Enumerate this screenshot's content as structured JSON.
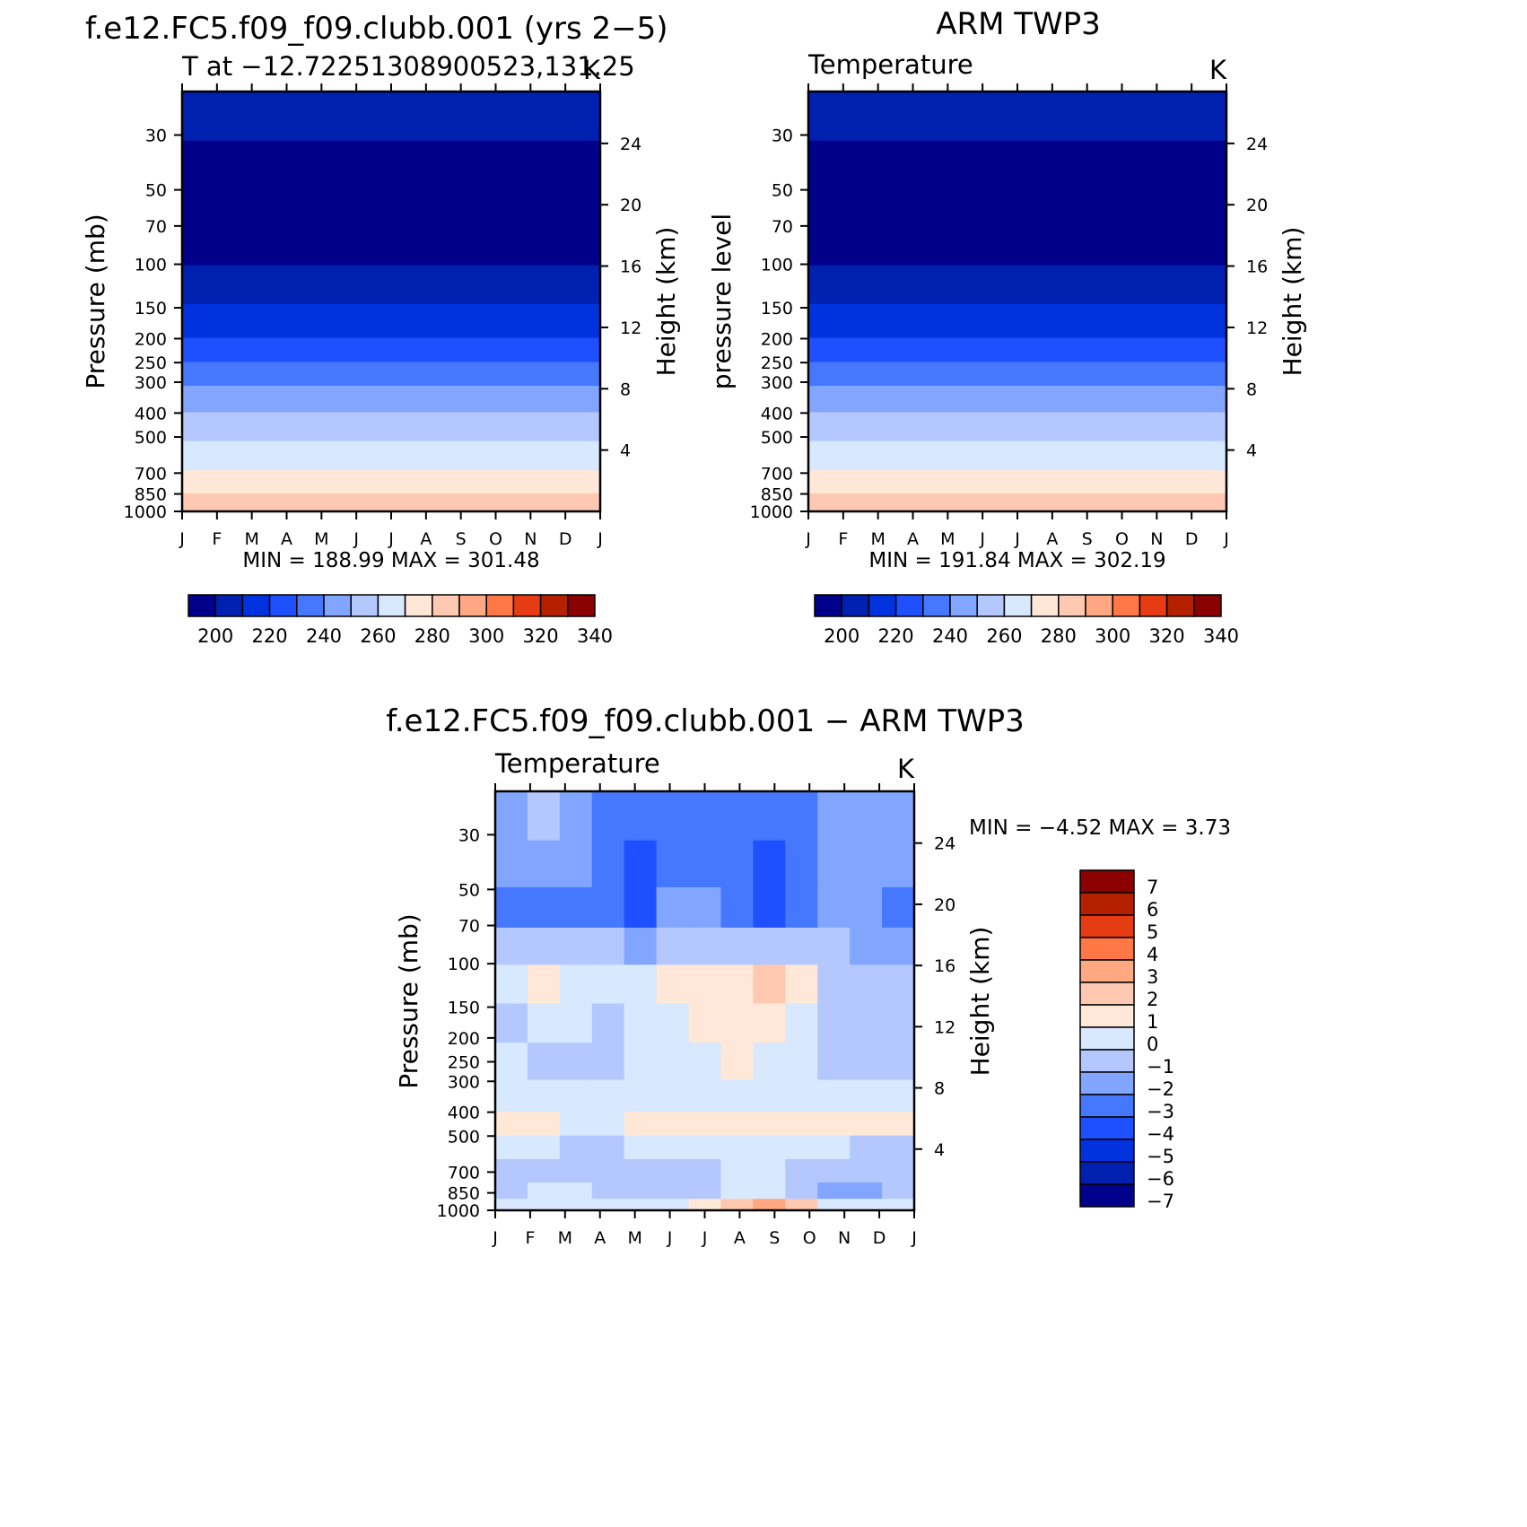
{
  "chart_data": [
    {
      "type": "heatmap",
      "panel": "model",
      "title": "f.e12.FC5.f09_f09.clubb.001 (yrs 2−5)",
      "subtitle_left": "T at −12.72251308900523,131.25",
      "subtitle_right": "K",
      "xlabel": "",
      "ylabel_left": "Pressure (mb)",
      "ylabel_right": "Height (km)",
      "x_ticks": [
        "J",
        "F",
        "M",
        "A",
        "M",
        "J",
        "J",
        "A",
        "S",
        "O",
        "N",
        "D",
        "J"
      ],
      "y_ticks_pressure": [
        30,
        50,
        70,
        100,
        150,
        200,
        250,
        300,
        400,
        500,
        700,
        850,
        1000
      ],
      "y_ticks_height_km": [
        24,
        20,
        16,
        12,
        8,
        4
      ],
      "ylim_pressure_mb": [
        20,
        1000
      ],
      "min_max_text": "MIN = 188.99 MAX = 301.48",
      "min": 188.99,
      "max": 301.48,
      "contour_levels": [
        200,
        210,
        220,
        230,
        240,
        250,
        260,
        270,
        280,
        290,
        300,
        310,
        320,
        330,
        340
      ],
      "colorbar_labels": [
        "200",
        "220",
        "240",
        "260",
        "280",
        "300",
        "320",
        "340"
      ],
      "pressure_levels_mb": [
        25,
        40,
        60,
        85,
        120,
        175,
        225,
        275,
        350,
        450,
        600,
        775,
        925
      ],
      "band_values_K": [
        205,
        195,
        185,
        195,
        205,
        215,
        225,
        235,
        245,
        255,
        265,
        275,
        285
      ]
    },
    {
      "type": "heatmap",
      "panel": "observations",
      "title": "ARM TWP3",
      "subtitle_left": "Temperature",
      "subtitle_right": "K",
      "xlabel": "",
      "ylabel_left": "pressure level",
      "ylabel_right": "Height (km)",
      "x_ticks": [
        "J",
        "F",
        "M",
        "A",
        "M",
        "J",
        "J",
        "A",
        "S",
        "O",
        "N",
        "D",
        "J"
      ],
      "y_ticks_pressure": [
        30,
        50,
        70,
        100,
        150,
        200,
        250,
        300,
        400,
        500,
        700,
        850,
        1000
      ],
      "y_ticks_height_km": [
        24,
        20,
        16,
        12,
        8,
        4
      ],
      "ylim_pressure_mb": [
        20,
        1000
      ],
      "min_max_text": "MIN = 191.84 MAX = 302.19",
      "min": 191.84,
      "max": 302.19,
      "contour_levels": [
        200,
        210,
        220,
        230,
        240,
        250,
        260,
        270,
        280,
        290,
        300,
        310,
        320,
        330,
        340
      ],
      "colorbar_labels": [
        "200",
        "220",
        "240",
        "260",
        "280",
        "300",
        "320",
        "340"
      ],
      "pressure_levels_mb": [
        25,
        40,
        60,
        85,
        120,
        175,
        225,
        275,
        350,
        450,
        600,
        775,
        925
      ],
      "band_values_K": [
        205,
        195,
        185,
        195,
        205,
        215,
        225,
        235,
        245,
        255,
        265,
        275,
        285
      ]
    },
    {
      "type": "heatmap",
      "panel": "difference",
      "title": "f.e12.FC5.f09_f09.clubb.001 − ARM TWP3",
      "subtitle_left": "Temperature",
      "subtitle_right": "K",
      "xlabel": "",
      "ylabel_left": "Pressure (mb)",
      "ylabel_right": "Height (km)",
      "x_ticks": [
        "J",
        "F",
        "M",
        "A",
        "M",
        "J",
        "J",
        "A",
        "S",
        "O",
        "N",
        "D",
        "J"
      ],
      "y_ticks_pressure": [
        30,
        50,
        70,
        100,
        150,
        200,
        250,
        300,
        400,
        500,
        700,
        850,
        1000
      ],
      "y_ticks_height_km": [
        24,
        20,
        16,
        12,
        8,
        4
      ],
      "ylim_pressure_mb": [
        20,
        1000
      ],
      "min_max_text": "MIN = −4.52 MAX = 3.73",
      "min": -4.52,
      "max": 3.73,
      "contour_levels": [
        -7,
        -6,
        -5,
        -4,
        -3,
        -2,
        -1,
        0,
        1,
        2,
        3,
        4,
        5,
        6,
        7
      ],
      "colorbar_labels": [
        "7",
        "6",
        "5",
        "4",
        "3",
        "2",
        "1",
        "0",
        "−1",
        "−2",
        "−3",
        "−4",
        "−5",
        "−6",
        "−7"
      ],
      "grid_pressure_mb": [
        25,
        40,
        60,
        85,
        120,
        175,
        250,
        350,
        450,
        550,
        700,
        850,
        950
      ],
      "grid_values_K": [
        [
          -2.5,
          -2,
          -3,
          -3.5,
          -3.5,
          -3.5,
          -3.5,
          -3.5,
          -4,
          -3.5,
          -2.5,
          -2.5,
          -2.5
        ],
        [
          -2.5,
          -2.5,
          -3,
          -3.5,
          -4.5,
          -3.5,
          -3.5,
          -3.5,
          -4.5,
          -3.5,
          -2.5,
          -2.5,
          -2.5
        ],
        [
          -3.5,
          -3.5,
          -3.5,
          -3.5,
          -4.5,
          -2.5,
          -3,
          -3.5,
          -4.5,
          -3.5,
          -2.5,
          -3,
          -3.5
        ],
        [
          -1.5,
          -1.5,
          -2,
          -2,
          -2.5,
          -1.5,
          -2,
          -2,
          -2,
          -2,
          -1.5,
          -2.5,
          -2.5
        ],
        [
          -0.5,
          0.5,
          -0.5,
          -0.5,
          -0.5,
          0.5,
          0.5,
          0.5,
          1.5,
          0.5,
          -1.5,
          -1.5,
          -1.5
        ],
        [
          -1.5,
          -0.5,
          -0.5,
          -1.5,
          -0.5,
          -0.5,
          0.5,
          0.5,
          0.5,
          -0.5,
          -1.5,
          -1.5,
          -1.5
        ],
        [
          -0.5,
          -1.5,
          -1.5,
          -1.5,
          -0.5,
          -0.5,
          -0.5,
          0.5,
          -0.5,
          -0.5,
          -1.5,
          -1.5,
          -1.5
        ],
        [
          -0.5,
          -0.5,
          -0.5,
          -0.5,
          -0.5,
          -0.5,
          -0.5,
          -0.5,
          -0.5,
          -0.5,
          -0.5,
          -0.5,
          -0.5
        ],
        [
          0.5,
          0.5,
          -0.5,
          -0.5,
          0.5,
          0.5,
          0.5,
          0.5,
          0.5,
          0.5,
          0.5,
          0.5,
          0.5
        ],
        [
          -0.5,
          -0.5,
          -1.5,
          -1.5,
          -0.5,
          -0.5,
          -0.5,
          -0.5,
          -0.5,
          -0.5,
          -0.5,
          -1.5,
          -1.5
        ],
        [
          -1.5,
          -1.5,
          -1.5,
          -1.5,
          -1.5,
          -1.5,
          -1.5,
          -0.5,
          -0.5,
          -1.5,
          -1.5,
          -1.5,
          -1.5
        ],
        [
          -1.5,
          -0.5,
          -0.5,
          -1.5,
          -1.5,
          -1.5,
          -1.5,
          -0.5,
          -0.5,
          -1.5,
          -2.5,
          -2.5,
          -1.5
        ],
        [
          -0.5,
          -0.5,
          -0.5,
          -0.5,
          -0.5,
          -0.5,
          0.5,
          1.5,
          2.5,
          1.5,
          -0.5,
          -0.5,
          -0.5
        ]
      ]
    }
  ],
  "colors": {
    "blue_red_15": [
      "#00008b",
      "#0020b0",
      "#0032dd",
      "#1e50ff",
      "#4678ff",
      "#82a5ff",
      "#b4c8ff",
      "#d7e8ff",
      "#ffe8d7",
      "#ffc8b0",
      "#ffa882",
      "#ff7846",
      "#e63c14",
      "#b42000",
      "#8b0000"
    ],
    "frame": "#000000",
    "background": "#ffffff"
  }
}
